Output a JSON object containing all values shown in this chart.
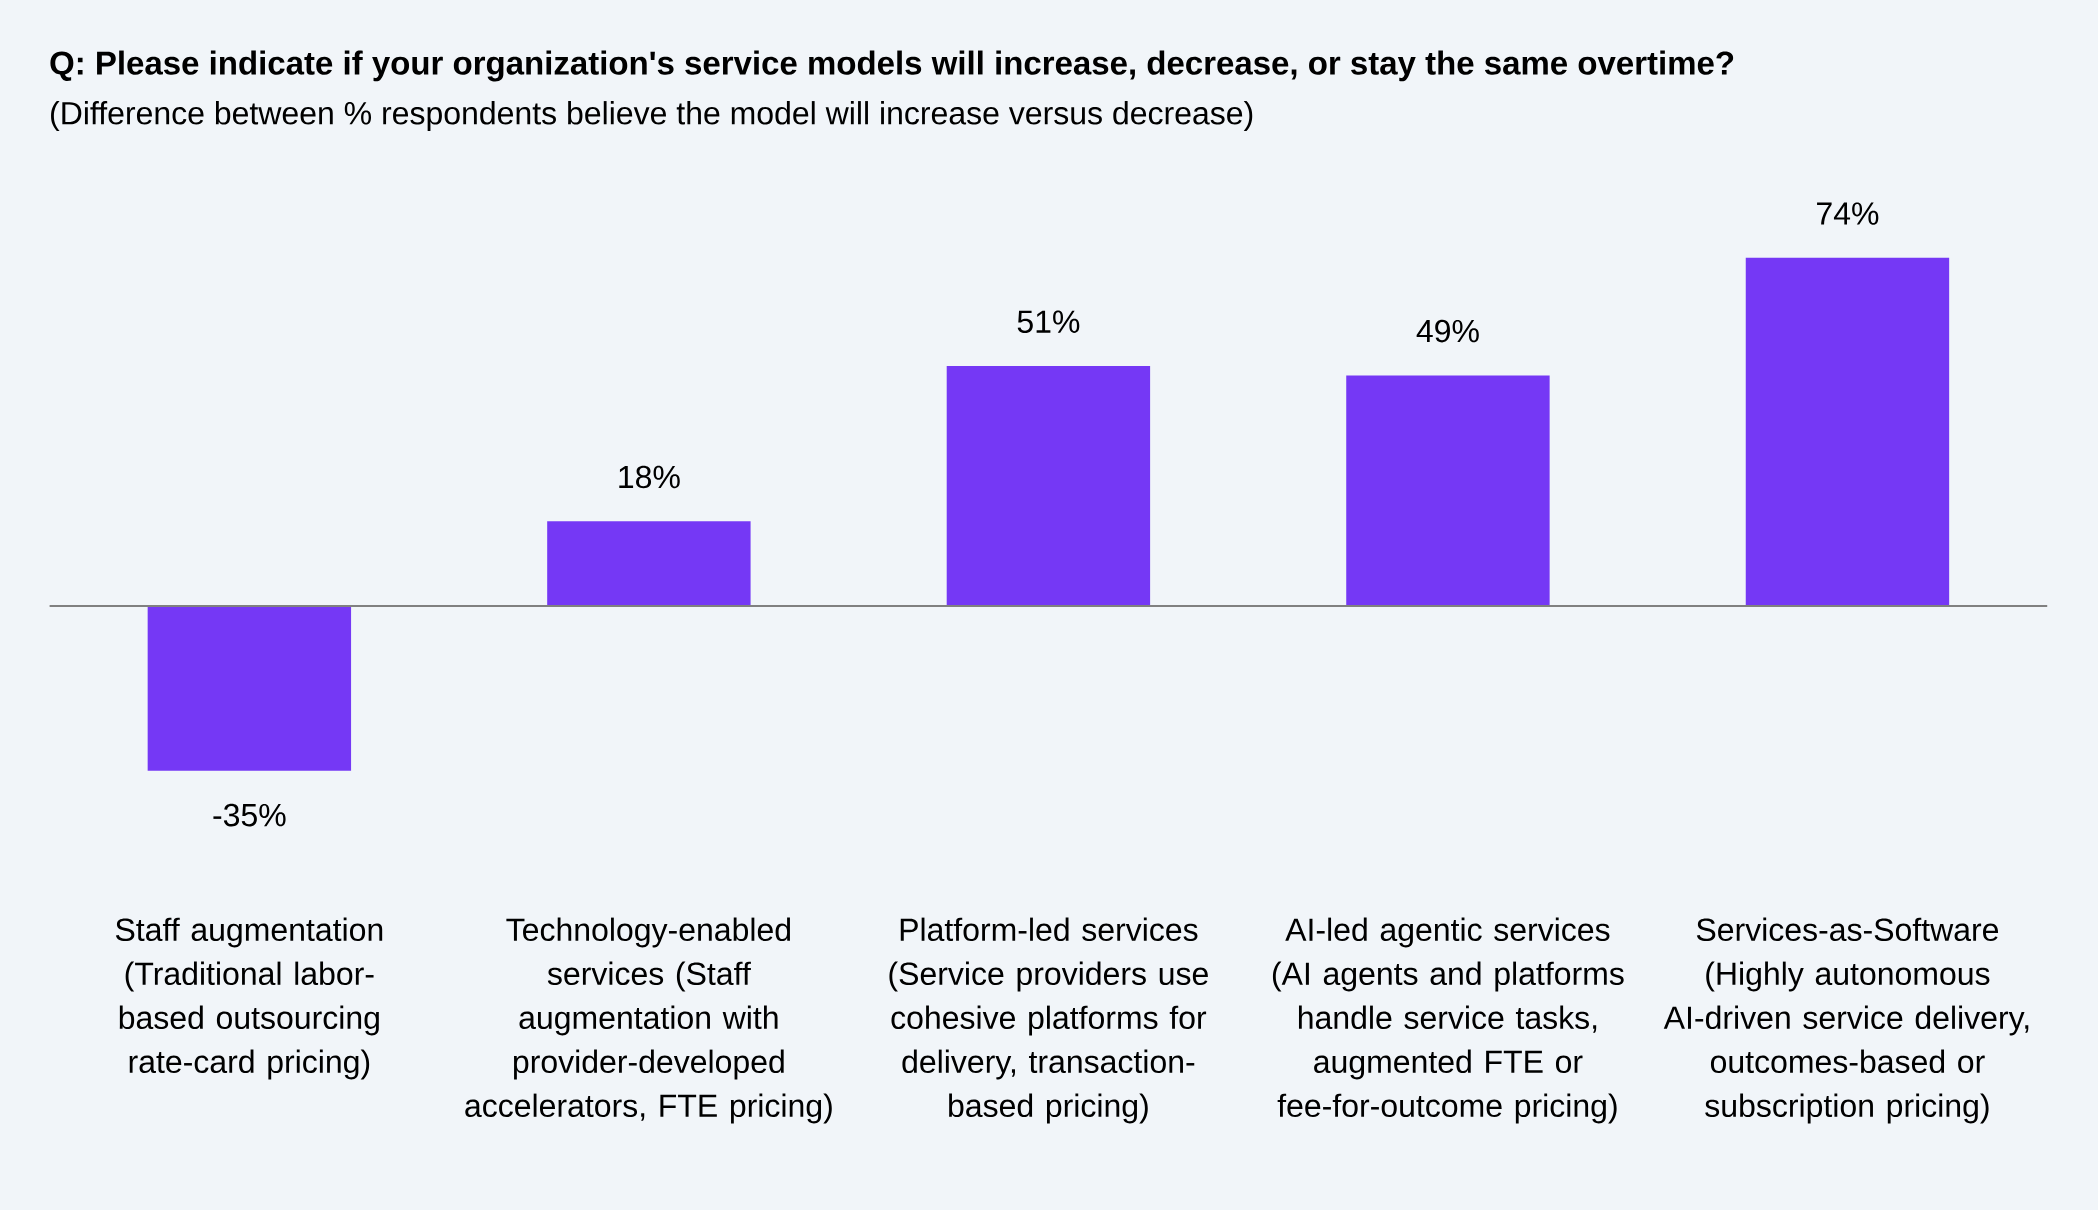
{
  "chart_data": {
    "type": "bar",
    "title": "Q: Please indicate if your organization's service models will increase, decrease, or stay the same overtime?",
    "subtitle": "(Difference between % respondents believe the model will increase versus decrease)",
    "categories": [
      "Staff augmentation (Traditional labor-based outsourcing rate-card pricing)",
      "Technology-enabled services (Staff augmentation with provider-developed accelerators, FTE pricing)",
      "Platform-led services (Service providers use cohesive platforms for delivery, transaction-based pricing)",
      "AI-led agentic services (AI agents and platforms handle service tasks, augmented FTE or fee-for-outcome pricing)",
      "Services-as-Software (Highly autonomous AI-driven service delivery, outcomes-based or subscription pricing)"
    ],
    "values": [
      -35,
      18,
      51,
      49,
      74
    ],
    "value_labels": [
      "-35%",
      "18%",
      "51%",
      "49%",
      "74%"
    ],
    "color": "#7538f5"
  }
}
